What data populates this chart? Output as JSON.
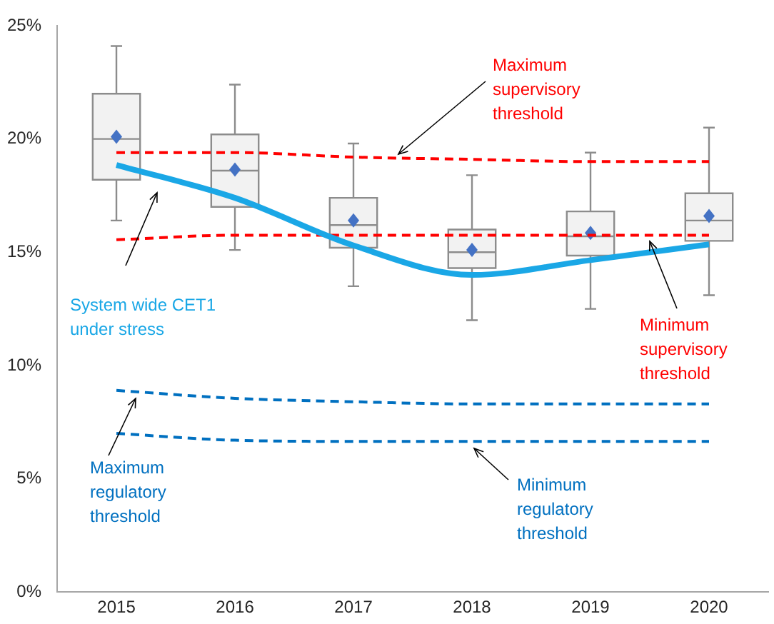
{
  "chart_data": {
    "type": "box",
    "categories": [
      "2015",
      "2016",
      "2017",
      "2018",
      "2019",
      "2020"
    ],
    "boxes": [
      {
        "low": 16.4,
        "q1": 18.2,
        "median": 20.0,
        "q3": 22.0,
        "high": 24.1,
        "mean": 20.1
      },
      {
        "low": 15.1,
        "q1": 17.0,
        "median": 18.6,
        "q3": 20.2,
        "high": 22.4,
        "mean": 18.65
      },
      {
        "low": 13.5,
        "q1": 15.2,
        "median": 16.2,
        "q3": 17.4,
        "high": 19.8,
        "mean": 16.4
      },
      {
        "low": 12.0,
        "q1": 14.3,
        "median": 15.0,
        "q3": 16.0,
        "high": 18.4,
        "mean": 15.1
      },
      {
        "low": 12.5,
        "q1": 14.85,
        "median": 15.7,
        "q3": 16.8,
        "high": 19.4,
        "mean": 15.85
      },
      {
        "low": 13.1,
        "q1": 15.5,
        "median": 16.4,
        "q3": 17.6,
        "high": 20.5,
        "mean": 16.6
      }
    ],
    "series": [
      {
        "type": "line",
        "name": "System wide CET1 under stress",
        "color": "#1aa7e6",
        "line_style": "solid",
        "values": [
          18.85,
          17.4,
          15.3,
          14.0,
          14.65,
          15.35
        ]
      },
      {
        "type": "line",
        "name": "Maximum supervisory threshold",
        "color": "#ff0000",
        "line_style": "dashed",
        "values": [
          19.4,
          19.4,
          19.2,
          19.1,
          19.0,
          19.0
        ]
      },
      {
        "type": "line",
        "name": "Minimum supervisory threshold",
        "color": "#ff0000",
        "line_style": "dashed",
        "values": [
          15.55,
          15.75,
          15.75,
          15.75,
          15.75,
          15.75
        ]
      },
      {
        "type": "line",
        "name": "Maximum regulatory threshold",
        "color": "#0070c0",
        "line_style": "dashed",
        "values": [
          8.9,
          8.55,
          8.4,
          8.3,
          8.3,
          8.3
        ]
      },
      {
        "type": "line",
        "name": "Minimum regulatory threshold",
        "color": "#0070c0",
        "line_style": "dashed",
        "values": [
          7.0,
          6.7,
          6.65,
          6.65,
          6.65,
          6.65
        ]
      }
    ],
    "ylim": [
      0,
      25
    ],
    "yticks": [
      {
        "value": 0,
        "label": "0%"
      },
      {
        "value": 5,
        "label": "5%"
      },
      {
        "value": 10,
        "label": "10%"
      },
      {
        "value": 15,
        "label": "15%"
      },
      {
        "value": 20,
        "label": "20%"
      },
      {
        "value": 25,
        "label": "25%"
      }
    ],
    "grid": false,
    "legend": false,
    "marker": "none"
  }
}
